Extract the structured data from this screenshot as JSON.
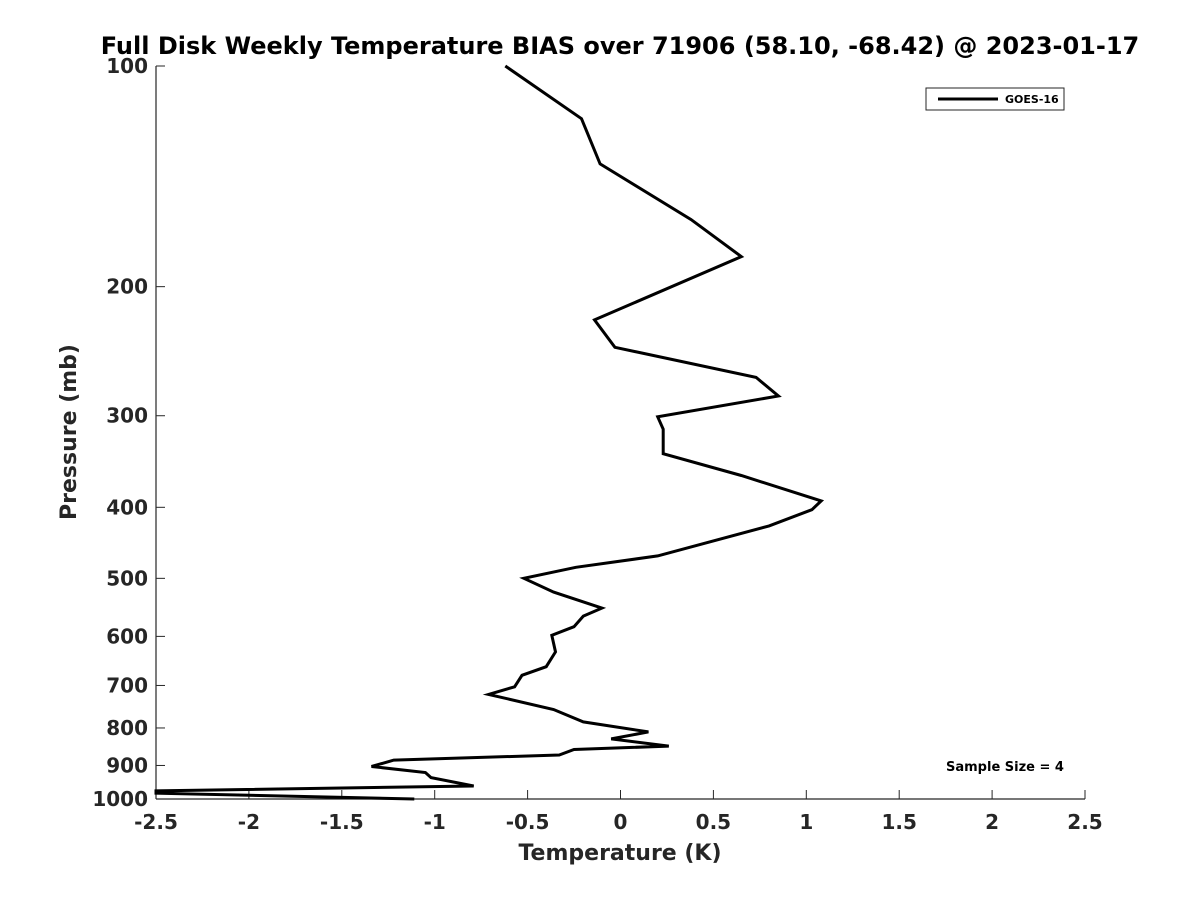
{
  "chart_data": {
    "type": "line",
    "title": "Full Disk Weekly Temperature BIAS over 71906 (58.10, -68.42) @ 2023-01-17",
    "xlabel": "Temperature (K)",
    "ylabel": "Pressure (mb)",
    "xlim": [
      -2.5,
      2.5
    ],
    "ylim": [
      100,
      1000
    ],
    "y_scale": "log",
    "y_inverted": true,
    "x_ticks": [
      "-2.5",
      "-2",
      "-1.5",
      "-1",
      "-0.5",
      "0",
      "0.5",
      "1",
      "1.5",
      "2",
      "2.5"
    ],
    "y_ticks": [
      "100",
      "200",
      "300",
      "400",
      "500",
      "600",
      "700",
      "800",
      "900",
      "1000"
    ],
    "grid": false,
    "legend_position": "top-right",
    "series": [
      {
        "name": "GOES-16",
        "color": "#000000",
        "points": [
          {
            "x": -0.62,
            "y": 100
          },
          {
            "x": -0.21,
            "y": 118
          },
          {
            "x": -0.11,
            "y": 136
          },
          {
            "x": 0.38,
            "y": 162
          },
          {
            "x": 0.65,
            "y": 182
          },
          {
            "x": -0.14,
            "y": 222
          },
          {
            "x": -0.03,
            "y": 242
          },
          {
            "x": 0.73,
            "y": 266
          },
          {
            "x": 0.85,
            "y": 282
          },
          {
            "x": 0.2,
            "y": 301
          },
          {
            "x": 0.23,
            "y": 313
          },
          {
            "x": 0.23,
            "y": 338
          },
          {
            "x": 0.65,
            "y": 362
          },
          {
            "x": 1.08,
            "y": 392
          },
          {
            "x": 1.03,
            "y": 403
          },
          {
            "x": 0.8,
            "y": 424
          },
          {
            "x": 0.2,
            "y": 466
          },
          {
            "x": -0.24,
            "y": 483
          },
          {
            "x": -0.52,
            "y": 500
          },
          {
            "x": -0.36,
            "y": 522
          },
          {
            "x": -0.1,
            "y": 549
          },
          {
            "x": -0.2,
            "y": 563
          },
          {
            "x": -0.25,
            "y": 582
          },
          {
            "x": -0.37,
            "y": 598
          },
          {
            "x": -0.35,
            "y": 630
          },
          {
            "x": -0.4,
            "y": 660
          },
          {
            "x": -0.53,
            "y": 678
          },
          {
            "x": -0.57,
            "y": 703
          },
          {
            "x": -0.71,
            "y": 720
          },
          {
            "x": -0.36,
            "y": 755
          },
          {
            "x": -0.2,
            "y": 785
          },
          {
            "x": 0.15,
            "y": 810
          },
          {
            "x": -0.05,
            "y": 828
          },
          {
            "x": 0.26,
            "y": 847
          },
          {
            "x": -0.25,
            "y": 856
          },
          {
            "x": -0.33,
            "y": 871
          },
          {
            "x": -1.22,
            "y": 885
          },
          {
            "x": -1.34,
            "y": 903
          },
          {
            "x": -1.05,
            "y": 920
          },
          {
            "x": -1.02,
            "y": 935
          },
          {
            "x": -0.79,
            "y": 960
          },
          {
            "x": -2.5,
            "y": 975
          },
          {
            "x": -2.5,
            "y": 982
          },
          {
            "x": -1.11,
            "y": 1000
          }
        ]
      }
    ],
    "annotations": [
      {
        "text": "Sample Size = 4"
      }
    ]
  }
}
